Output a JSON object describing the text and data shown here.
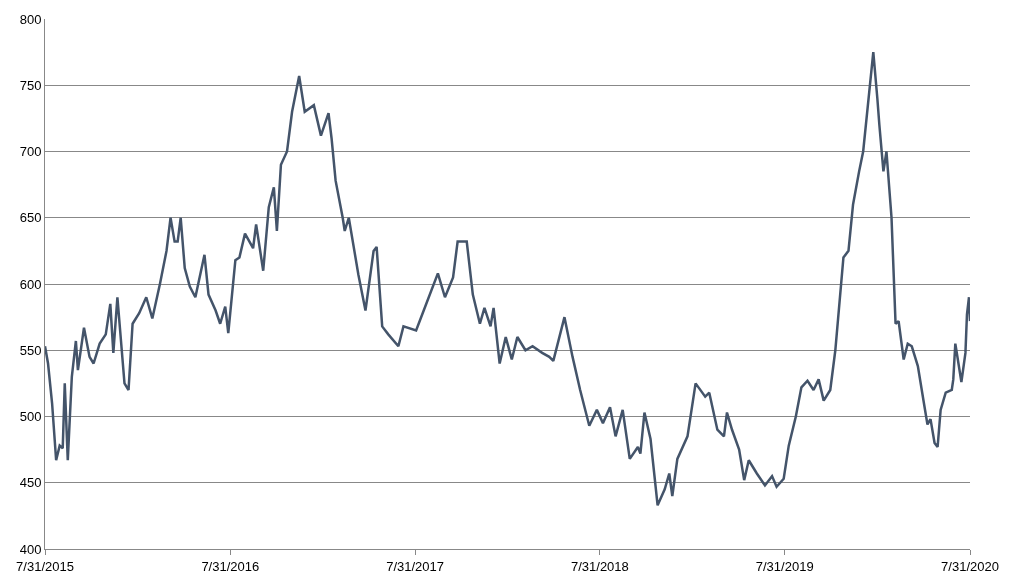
{
  "chart_data": {
    "type": "line",
    "x": [
      "2015-07-31",
      "2015-08-06",
      "2015-08-14",
      "2015-08-22",
      "2015-08-29",
      "2015-09-04",
      "2015-09-08",
      "2015-09-14",
      "2015-09-22",
      "2015-09-30",
      "2015-10-04",
      "2015-10-16",
      "2015-10-27",
      "2015-11-04",
      "2015-11-16",
      "2015-11-28",
      "2015-12-07",
      "2015-12-13",
      "2015-12-21",
      "2016-01-04",
      "2016-01-12",
      "2016-01-20",
      "2016-02-02",
      "2016-02-16",
      "2016-02-28",
      "2016-03-14",
      "2016-03-27",
      "2016-04-04",
      "2016-04-12",
      "2016-04-18",
      "2016-04-24",
      "2016-05-02",
      "2016-05-12",
      "2016-05-23",
      "2016-06-10",
      "2016-06-18",
      "2016-07-02",
      "2016-07-11",
      "2016-07-21",
      "2016-07-27",
      "2016-08-10",
      "2016-08-18",
      "2016-08-29",
      "2016-09-14",
      "2016-09-20",
      "2016-10-04",
      "2016-10-15",
      "2016-10-25",
      "2016-10-31",
      "2016-11-08",
      "2016-11-20",
      "2016-11-30",
      "2016-12-14",
      "2016-12-25",
      "2017-01-12",
      "2017-01-26",
      "2017-02-10",
      "2017-02-16",
      "2017-02-24",
      "2017-03-10",
      "2017-03-14",
      "2017-03-22",
      "2017-04-10",
      "2017-04-24",
      "2017-05-10",
      "2017-05-16",
      "2017-05-27",
      "2017-06-08",
      "2017-06-28",
      "2017-07-08",
      "2017-08-02",
      "2017-08-17",
      "2017-09-14",
      "2017-09-28",
      "2017-10-14",
      "2017-10-23",
      "2017-11-10",
      "2017-11-22",
      "2017-12-06",
      "2017-12-15",
      "2017-12-27",
      "2018-01-02",
      "2018-01-14",
      "2018-01-26",
      "2018-02-07",
      "2018-02-18",
      "2018-03-06",
      "2018-03-20",
      "2018-04-08",
      "2018-04-22",
      "2018-04-30",
      "2018-05-22",
      "2018-06-07",
      "2018-06-22",
      "2018-07-10",
      "2018-07-25",
      "2018-08-06",
      "2018-08-20",
      "2018-08-31",
      "2018-09-14",
      "2018-09-28",
      "2018-10-14",
      "2018-10-19",
      "2018-10-27",
      "2018-11-08",
      "2018-11-22",
      "2018-12-06",
      "2018-12-15",
      "2018-12-21",
      "2018-12-31",
      "2019-01-20",
      "2019-02-05",
      "2019-02-24",
      "2019-03-04",
      "2019-03-20",
      "2019-04-02",
      "2019-04-08",
      "2019-04-18",
      "2019-05-02",
      "2019-05-12",
      "2019-05-21",
      "2019-06-06",
      "2019-06-22",
      "2019-07-06",
      "2019-07-15",
      "2019-07-29",
      "2019-08-08",
      "2019-08-22",
      "2019-09-02",
      "2019-09-14",
      "2019-09-26",
      "2019-10-06",
      "2019-10-16",
      "2019-10-29",
      "2019-11-08",
      "2019-11-24",
      "2019-12-04",
      "2019-12-13",
      "2019-12-25",
      "2020-01-02",
      "2020-01-14",
      "2020-01-22",
      "2020-01-30",
      "2020-02-03",
      "2020-02-11",
      "2020-02-17",
      "2020-02-27",
      "2020-03-06",
      "2020-03-12",
      "2020-03-22",
      "2020-03-30",
      "2020-04-07",
      "2020-04-19",
      "2020-05-01",
      "2020-05-08",
      "2020-05-14",
      "2020-05-22",
      "2020-05-28",
      "2020-06-03",
      "2020-06-13",
      "2020-06-25",
      "2020-06-28",
      "2020-07-02",
      "2020-07-14",
      "2020-07-22",
      "2020-07-25",
      "2020-07-29",
      "2020-07-31"
    ],
    "series": [
      {
        "color": "#44546a",
        "values": [
          553,
          540,
          510,
          467,
          478,
          476,
          525,
          467,
          530,
          557,
          535,
          567,
          545,
          540,
          555,
          562,
          585,
          548,
          590,
          525,
          520,
          570,
          578,
          590,
          574,
          600,
          625,
          650,
          632,
          632,
          650,
          612,
          598,
          590,
          622,
          592,
          580,
          570,
          583,
          563,
          618,
          620,
          638,
          627,
          645,
          610,
          658,
          673,
          640,
          690,
          700,
          730,
          757,
          730,
          735,
          712,
          729,
          710,
          678,
          650,
          640,
          650,
          607,
          580,
          625,
          628,
          568,
          562,
          553,
          568,
          565,
          580,
          608,
          590,
          605,
          632,
          632,
          592,
          570,
          582,
          568,
          582,
          540,
          560,
          543,
          560,
          550,
          553,
          548,
          545,
          542,
          575,
          545,
          520,
          493,
          505,
          495,
          507,
          485,
          505,
          468,
          477,
          472,
          503,
          483,
          433,
          445,
          457,
          440,
          468,
          485,
          525,
          515,
          518,
          490,
          485,
          503,
          490,
          475,
          452,
          467,
          457,
          448,
          455,
          447,
          453,
          478,
          500,
          522,
          527,
          520,
          528,
          512,
          520,
          550,
          620,
          625,
          660,
          685,
          700,
          745,
          775,
          740,
          720,
          685,
          700,
          650,
          570,
          572,
          543,
          555,
          553,
          538,
          510,
          494,
          498,
          480,
          477,
          505,
          518,
          520,
          528,
          555,
          526,
          548,
          577,
          590,
          572
        ]
      }
    ],
    "xlim": [
      "2015-07-31",
      "2020-07-31"
    ],
    "xticks": [
      {
        "value": "2015-07-31",
        "label": "7/31/2015"
      },
      {
        "value": "2016-07-31",
        "label": "7/31/2016"
      },
      {
        "value": "2017-07-31",
        "label": "7/31/2017"
      },
      {
        "value": "2018-07-31",
        "label": "7/31/2018"
      },
      {
        "value": "2019-07-31",
        "label": "7/31/2019"
      },
      {
        "value": "2020-07-31",
        "label": "7/31/2020"
      }
    ],
    "ylim": [
      400,
      800
    ],
    "yticks": [
      400,
      450,
      500,
      550,
      600,
      650,
      700,
      750,
      800
    ],
    "grid": "y",
    "line_style": "solid"
  }
}
